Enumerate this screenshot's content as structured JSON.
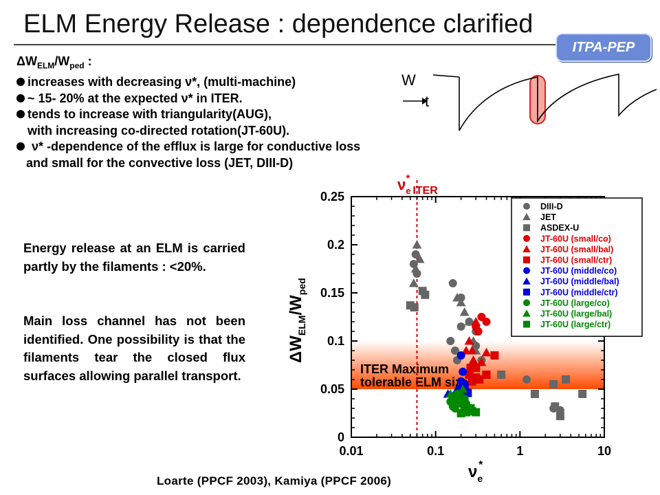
{
  "slide": {
    "title": "ELM Energy Release : dependence clarified",
    "badge": "ITPA-PEP",
    "head": {
      "delta": "ΔW",
      "sub1": "ELM",
      "mid": "/W",
      "sub2": "ped",
      "tail": " :"
    },
    "bullets": [
      "increases with decreasing ν*, (multi-machine)",
      "~ 15- 20% at the expected ν* in ITER.",
      "tends to increase with triangularity(AUG),",
      "with increasing co-directed rotation(JT-60U).",
      "ν* -dependence of the efflux is large for conductive loss",
      "and small for the convective loss (JET, DIII-D)"
    ],
    "paragraph1": "Energy release at an ELM is carried partly by the filaments : <20%.",
    "paragraph2": "Main loss channel has not been identified. One possibility is that the filaments tear the closed flux surfaces allowing parallel transport.",
    "credit": "Loarte (PPCF 2003), Kamiya  (PPCF 2006)"
  },
  "sketch": {
    "ylabel": "W",
    "xlabel": "t"
  },
  "chart_data": {
    "type": "scatter",
    "xscale": "log",
    "xlim": [
      0.01,
      10
    ],
    "ylim": [
      0,
      0.25
    ],
    "xticks": [
      "0.01",
      "0.1",
      "1",
      "10"
    ],
    "yticks": [
      "0",
      "0.05",
      "0.1",
      "0.15",
      "0.2",
      "0.25"
    ],
    "ylabel": "ΔW",
    "ylabel_sub": "ELM",
    "ylabel_tail": "/W",
    "ylabel_sub2": "ped",
    "xlabel": "ν",
    "xlabel_sub": "e",
    "xlabel_sup": "*",
    "iter_label": "ν",
    "iter_label_sub": "e",
    "iter_label_sup": "*",
    "iter_label_tail": "ITER",
    "iter_nu": 0.06,
    "band": {
      "y_from": 0.05,
      "y_to": 0.1,
      "label": "ITER Maximum tolerable ELM size"
    },
    "legend_position": "top-right",
    "series": [
      {
        "name": "DIII-D",
        "marker": "circle",
        "color": "#666666",
        "points": [
          [
            0.055,
            0.18
          ],
          [
            0.06,
            0.17
          ],
          [
            0.058,
            0.19
          ],
          [
            0.16,
            0.16
          ],
          [
            0.2,
            0.145
          ],
          [
            0.15,
            0.1
          ],
          [
            0.18,
            0.08
          ],
          [
            0.25,
            0.12
          ],
          [
            0.3,
            0.11
          ],
          [
            0.35,
            0.08
          ],
          [
            0.2,
            0.115
          ],
          [
            0.17,
            0.09
          ],
          [
            1.2,
            0.06
          ],
          [
            2.5,
            0.03
          ],
          [
            3.0,
            0.028
          ],
          [
            0.3,
            0.095
          ]
        ]
      },
      {
        "name": "JET",
        "marker": "triangle",
        "color": "#666666",
        "points": [
          [
            0.06,
            0.2
          ],
          [
            0.058,
            0.175
          ],
          [
            0.055,
            0.16
          ],
          [
            0.065,
            0.185
          ],
          [
            0.2,
            0.14
          ],
          [
            0.22,
            0.13
          ],
          [
            0.25,
            0.12
          ],
          [
            0.18,
            0.145
          ],
          [
            0.3,
            0.09
          ],
          [
            0.28,
            0.1
          ]
        ]
      },
      {
        "name": "ASDEX-U",
        "marker": "square",
        "color": "#666666",
        "points": [
          [
            0.05,
            0.137
          ],
          [
            0.056,
            0.135
          ],
          [
            0.07,
            0.152
          ],
          [
            0.075,
            0.148
          ],
          [
            0.6,
            0.065
          ],
          [
            1.5,
            0.045
          ],
          [
            2.5,
            0.055
          ],
          [
            3.5,
            0.06
          ],
          [
            5.5,
            0.045
          ],
          [
            3.0,
            0.022
          ],
          [
            2.6,
            0.032
          ]
        ]
      },
      {
        "name": "JT-60U (small/co)",
        "marker": "circle",
        "color": "#dd0000",
        "points": [
          [
            0.35,
            0.125
          ],
          [
            0.4,
            0.12
          ],
          [
            0.3,
            0.115
          ],
          [
            0.32,
            0.11
          ]
        ]
      },
      {
        "name": "JT-60U (small/bal)",
        "marker": "triangle",
        "color": "#dd0000",
        "points": [
          [
            0.3,
            0.12
          ],
          [
            0.25,
            0.1
          ],
          [
            0.27,
            0.09
          ],
          [
            0.28,
            0.08
          ],
          [
            0.3,
            0.075
          ],
          [
            0.23,
            0.09
          ],
          [
            0.4,
            0.088
          ],
          [
            0.35,
            0.078
          ]
        ]
      },
      {
        "name": "JT-60U (small/ctr)",
        "marker": "square",
        "color": "#dd0000",
        "points": [
          [
            0.27,
            0.058
          ],
          [
            0.3,
            0.062
          ],
          [
            0.26,
            0.072
          ],
          [
            0.3,
            0.072
          ],
          [
            0.25,
            0.065
          ],
          [
            0.33,
            0.06
          ],
          [
            0.4,
            0.065
          ],
          [
            0.5,
            0.085
          ]
        ]
      },
      {
        "name": "JT-60U (middle/co)",
        "marker": "circle",
        "color": "#0000dd",
        "points": [
          [
            0.2,
            0.085
          ],
          [
            0.21,
            0.068
          ],
          [
            0.2,
            0.058
          ],
          [
            0.22,
            0.055
          ],
          [
            0.19,
            0.05
          ],
          [
            0.23,
            0.048
          ],
          [
            0.2,
            0.045
          ]
        ]
      },
      {
        "name": "JT-60U (middle/bal)",
        "marker": "triangle",
        "color": "#0000dd",
        "points": [
          [
            0.14,
            0.045
          ],
          [
            0.16,
            0.042
          ],
          [
            0.18,
            0.05
          ],
          [
            0.21,
            0.05
          ]
        ]
      },
      {
        "name": "JT-60U (middle/ctr)",
        "marker": "square",
        "color": "#0000dd",
        "points": [
          [
            0.22,
            0.052
          ],
          [
            0.24,
            0.046
          ]
        ]
      },
      {
        "name": "JT-60U (large/co)",
        "marker": "circle",
        "color": "#008800",
        "points": [
          [
            0.15,
            0.037
          ],
          [
            0.17,
            0.038
          ],
          [
            0.2,
            0.035
          ],
          [
            0.22,
            0.04
          ],
          [
            0.18,
            0.045
          ],
          [
            0.2,
            0.042
          ],
          [
            0.17,
            0.03
          ],
          [
            0.16,
            0.032
          ],
          [
            0.23,
            0.035
          ]
        ]
      },
      {
        "name": "JT-60U (large/bal)",
        "marker": "triangle",
        "color": "#008800",
        "points": [
          [
            0.19,
            0.042
          ],
          [
            0.21,
            0.05
          ],
          [
            0.15,
            0.045
          ],
          [
            0.18,
            0.04
          ]
        ]
      },
      {
        "name": "JT-60U (large/ctr)",
        "marker": "square",
        "color": "#008800",
        "points": [
          [
            0.2,
            0.025
          ],
          [
            0.22,
            0.03
          ],
          [
            0.24,
            0.028
          ],
          [
            0.27,
            0.027
          ],
          [
            0.3,
            0.026
          ],
          [
            0.26,
            0.03
          ],
          [
            0.23,
            0.026
          ]
        ]
      }
    ]
  }
}
